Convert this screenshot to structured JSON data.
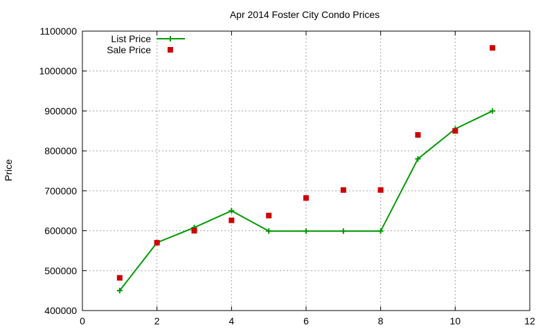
{
  "chart_data": {
    "type": "line",
    "title": "Apr 2014 Foster City Condo Prices",
    "xlabel": "",
    "ylabel": "Price",
    "xlim": [
      0,
      12
    ],
    "ylim": [
      400000,
      1100000
    ],
    "xticks": [
      0,
      2,
      4,
      6,
      8,
      10,
      12
    ],
    "yticks": [
      400000,
      500000,
      600000,
      700000,
      800000,
      900000,
      1000000,
      1100000
    ],
    "grid": true,
    "legend_position": "top-left",
    "series": [
      {
        "name": "List Price",
        "style": "line-with-plus-markers",
        "color": "#009900",
        "x": [
          1,
          2,
          3,
          4,
          5,
          6,
          7,
          8,
          9,
          10,
          11
        ],
        "y": [
          450000,
          570000,
          608000,
          650000,
          599000,
          599000,
          599000,
          599000,
          780000,
          855000,
          900000
        ]
      },
      {
        "name": "Sale Price",
        "style": "square-markers",
        "color": "#cc0000",
        "x": [
          1,
          2,
          3,
          4,
          5,
          6,
          7,
          8,
          9,
          10,
          11
        ],
        "y": [
          482000,
          570000,
          600000,
          626000,
          638000,
          682000,
          702000,
          702000,
          840000,
          850000,
          1058000
        ]
      }
    ]
  }
}
